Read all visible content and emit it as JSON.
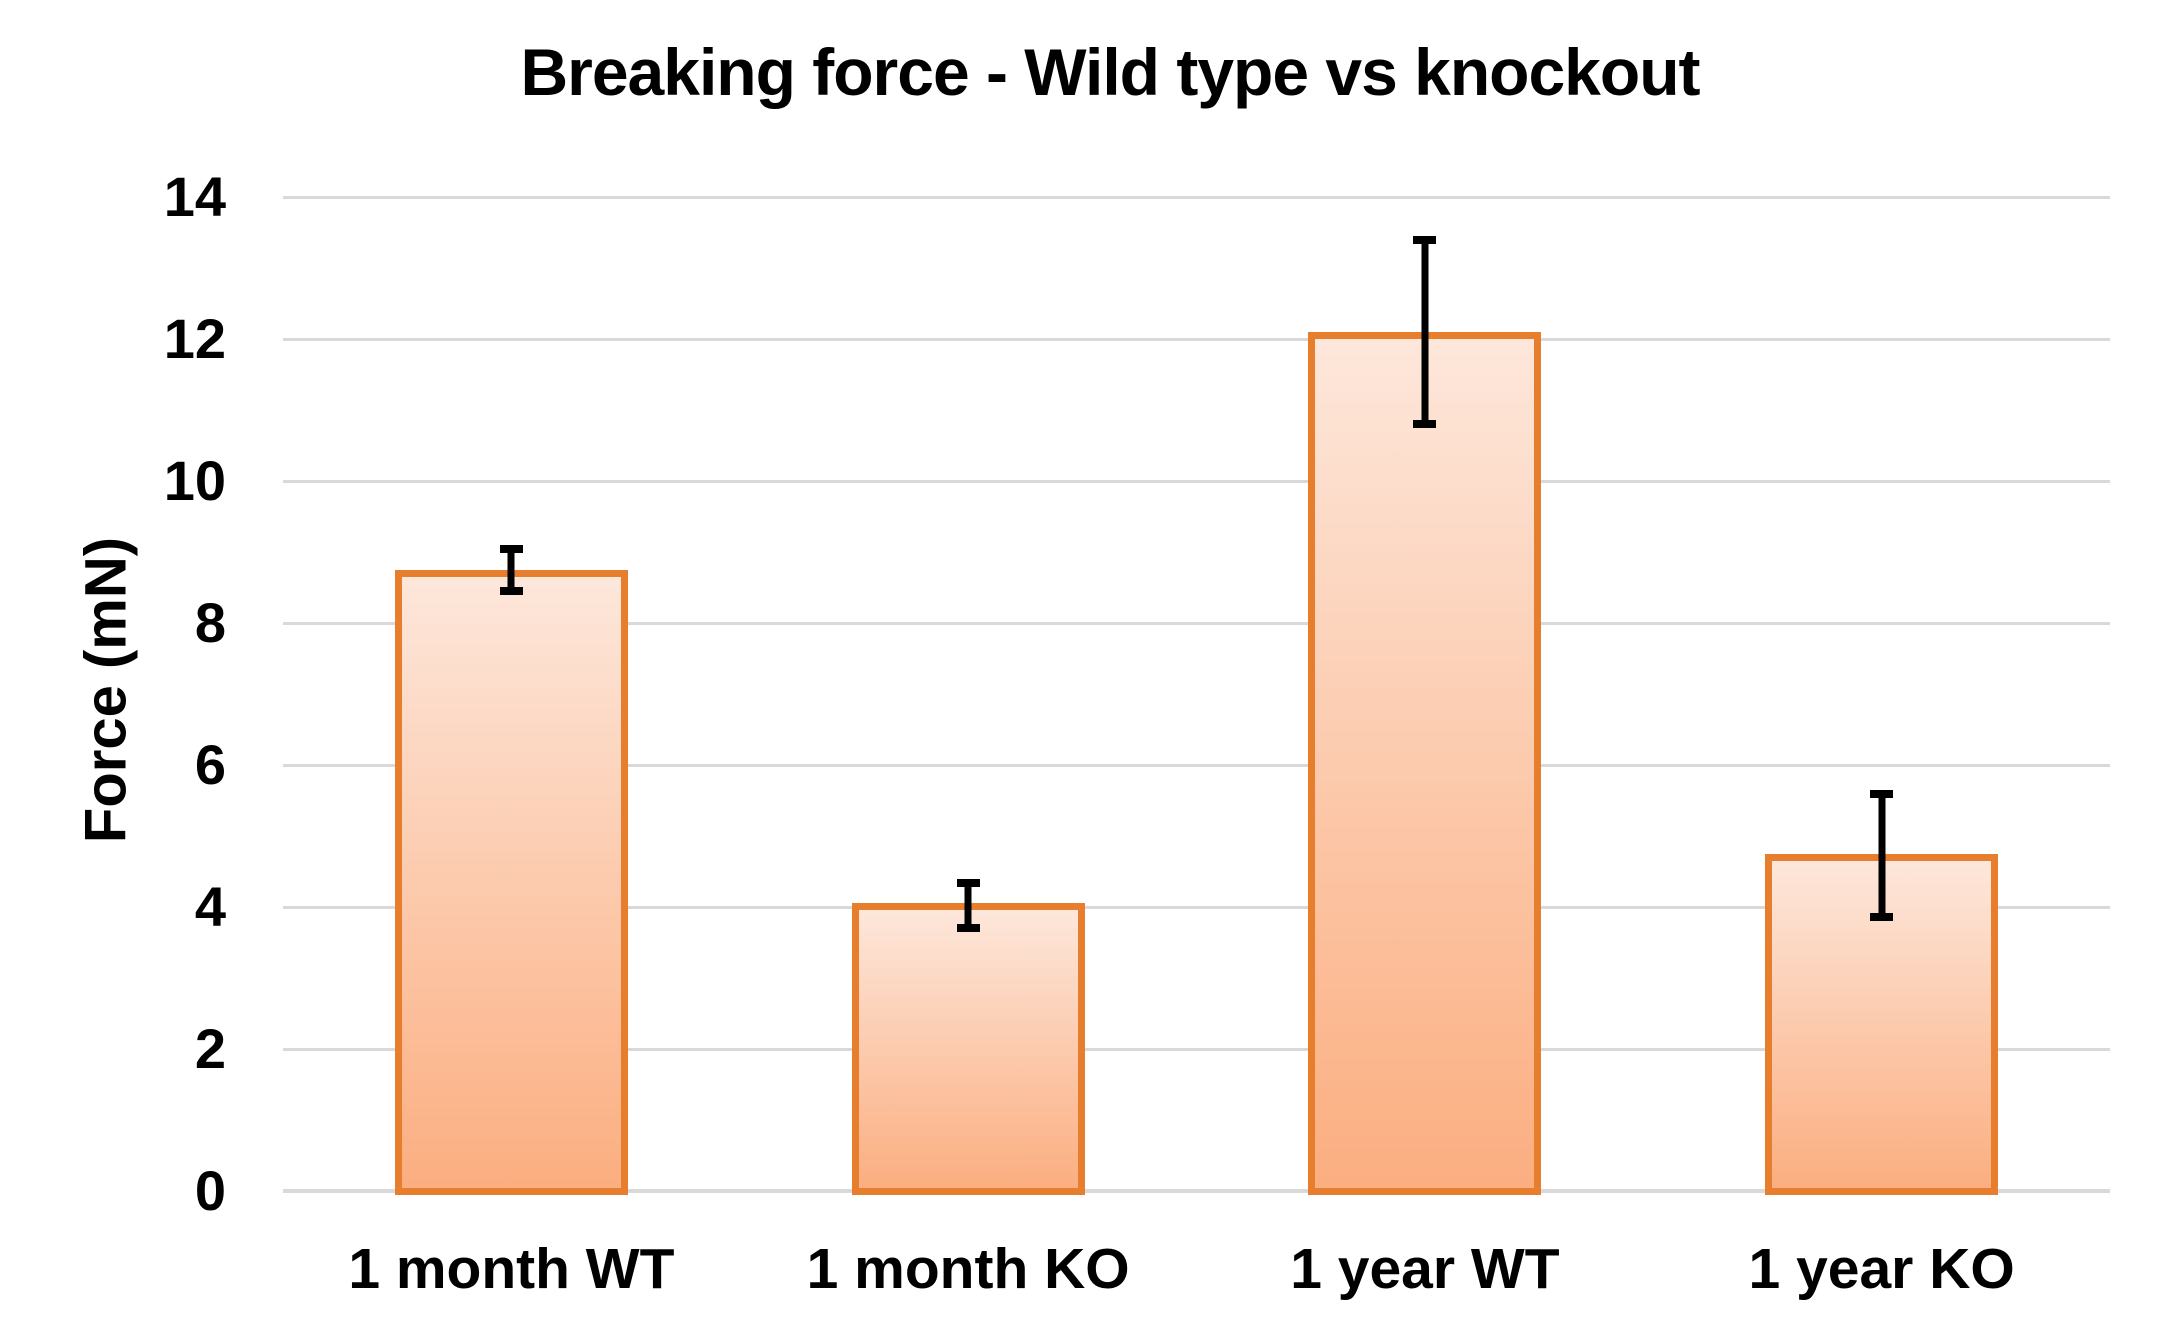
{
  "title": "Breaking force - Wild type vs knockout",
  "y_axis": {
    "label": "Force (mN)",
    "tick_labels": [
      "0",
      "2",
      "4",
      "6",
      "8",
      "10",
      "12",
      "14"
    ]
  },
  "x_axis": {
    "categories": [
      "1 month WT",
      "1 month KO",
      "1 year WT",
      "1 year KO"
    ]
  },
  "chart_data": {
    "type": "bar",
    "title": "Breaking force - Wild type vs knockout",
    "categories": [
      "1 month WT",
      "1 month KO",
      "1 year WT",
      "1 year KO"
    ],
    "values": [
      8.75,
      4.05,
      12.1,
      4.75
    ],
    "error_bars": {
      "upper": [
        9.1,
        4.4,
        13.45,
        5.65
      ],
      "lower": [
        8.4,
        3.65,
        10.75,
        3.8
      ]
    },
    "xlabel": "",
    "ylabel": "Force (mN)",
    "ylim": [
      0,
      14
    ],
    "yticks": [
      0,
      2,
      4,
      6,
      8,
      10,
      12,
      14
    ],
    "grid": true,
    "legend": false,
    "colors": {
      "bar_border": "#E67E2E",
      "bar_fill_top": "#FDE7DB",
      "bar_fill_bottom": "#FBAE80",
      "gridline": "#D9D9D9",
      "axis_line": "#D9D9D9",
      "error_bar": "#000000",
      "text": "#000000"
    }
  }
}
